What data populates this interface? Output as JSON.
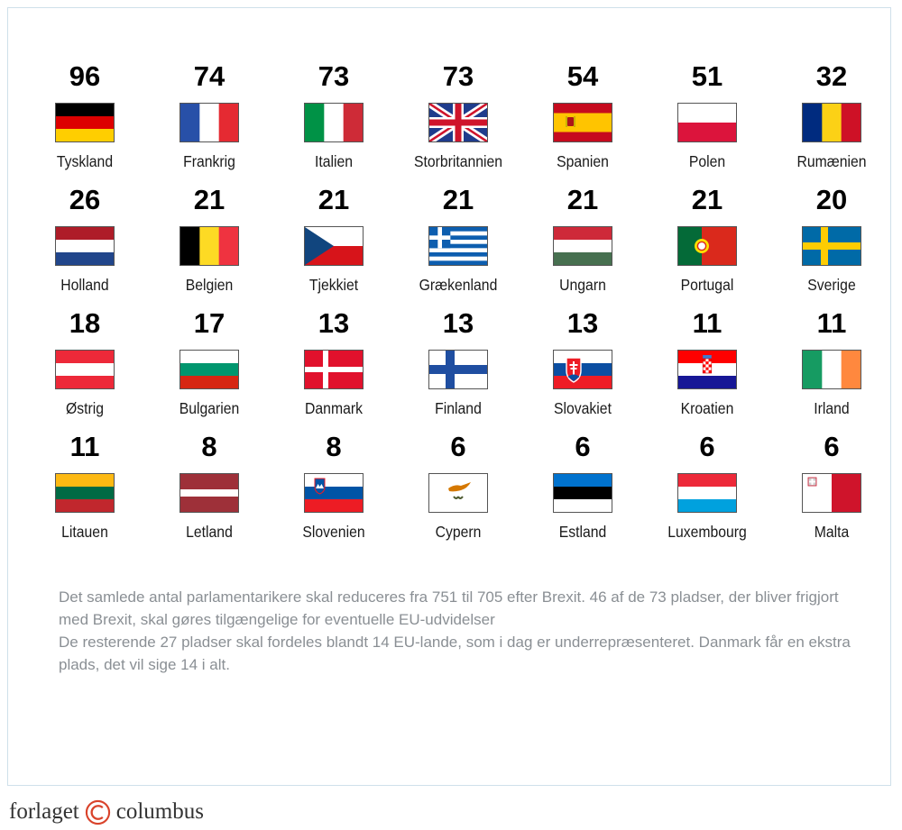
{
  "chart_data": {
    "type": "table",
    "series": [
      {
        "values": [
          96,
          74,
          73,
          73,
          54,
          51,
          32,
          26,
          21,
          21,
          21,
          21,
          21,
          20,
          18,
          17,
          13,
          13,
          13,
          11,
          11,
          11,
          8,
          8,
          6,
          6,
          6,
          6
        ]
      }
    ],
    "countries": [
      {
        "name": "Tyskland",
        "seats": 96,
        "flag": "germany"
      },
      {
        "name": "Frankrig",
        "seats": 74,
        "flag": "france"
      },
      {
        "name": "Italien",
        "seats": 73,
        "flag": "italy"
      },
      {
        "name": "Storbritannien",
        "seats": 73,
        "flag": "uk"
      },
      {
        "name": "Spanien",
        "seats": 54,
        "flag": "spain"
      },
      {
        "name": "Polen",
        "seats": 51,
        "flag": "poland"
      },
      {
        "name": "Rumænien",
        "seats": 32,
        "flag": "romania"
      },
      {
        "name": "Holland",
        "seats": 26,
        "flag": "netherlands"
      },
      {
        "name": "Belgien",
        "seats": 21,
        "flag": "belgium"
      },
      {
        "name": "Tjekkiet",
        "seats": 21,
        "flag": "czechia"
      },
      {
        "name": "Grækenland",
        "seats": 21,
        "flag": "greece"
      },
      {
        "name": "Ungarn",
        "seats": 21,
        "flag": "hungary"
      },
      {
        "name": "Portugal",
        "seats": 21,
        "flag": "portugal"
      },
      {
        "name": "Sverige",
        "seats": 20,
        "flag": "sweden"
      },
      {
        "name": "Østrig",
        "seats": 18,
        "flag": "austria"
      },
      {
        "name": "Bulgarien",
        "seats": 17,
        "flag": "bulgaria"
      },
      {
        "name": "Danmark",
        "seats": 13,
        "flag": "denmark"
      },
      {
        "name": "Finland",
        "seats": 13,
        "flag": "finland"
      },
      {
        "name": "Slovakiet",
        "seats": 13,
        "flag": "slovakia"
      },
      {
        "name": "Kroatien",
        "seats": 11,
        "flag": "croatia"
      },
      {
        "name": "Irland",
        "seats": 11,
        "flag": "ireland"
      },
      {
        "name": "Litauen",
        "seats": 11,
        "flag": "lithuania"
      },
      {
        "name": "Letland",
        "seats": 8,
        "flag": "latvia"
      },
      {
        "name": "Slovenien",
        "seats": 8,
        "flag": "slovenia"
      },
      {
        "name": "Cypern",
        "seats": 6,
        "flag": "cyprus"
      },
      {
        "name": "Estland",
        "seats": 6,
        "flag": "estonia"
      },
      {
        "name": "Luxembourg",
        "seats": 6,
        "flag": "luxembourg"
      },
      {
        "name": "Malta",
        "seats": 6,
        "flag": "malta"
      }
    ]
  },
  "notes": {
    "line1": "Det samlede antal parlamentarikere skal reduceres fra 751 til 705 efter Brexit. 46 af de 73 pladser, der bliver frigjort med Brexit, skal gøres tilgængelige for eventuelle EU-udvidelser",
    "line2": "De resterende 27 pladser skal fordeles blandt 14 EU-lande, som i dag er underrepræsenteret. Danmark får en ekstra plads, det vil sige 14 i alt."
  },
  "brand": {
    "left": "forlaget",
    "right": "columbus",
    "icon": "copyright-c-icon"
  }
}
